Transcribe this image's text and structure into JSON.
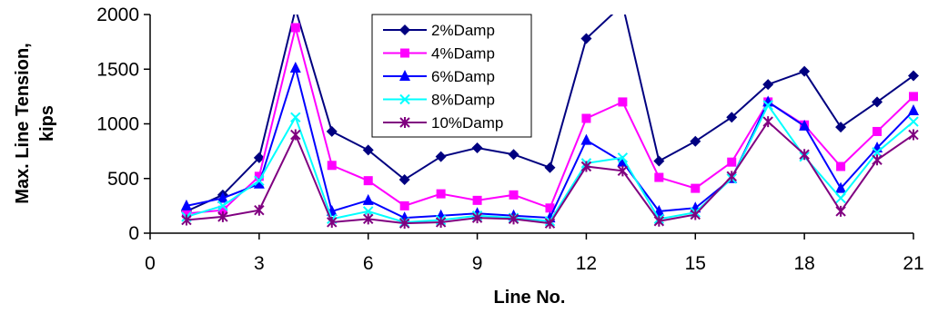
{
  "chart_data": {
    "type": "line",
    "title": "",
    "xlabel": "Line No.",
    "ylabel_lines": [
      "Max. Line Tension,",
      "kips"
    ],
    "xlim": [
      0,
      21
    ],
    "ylim": [
      0,
      2000
    ],
    "xticks": [
      0,
      3,
      6,
      9,
      12,
      15,
      18,
      21
    ],
    "yticks": [
      0,
      500,
      1000,
      1500,
      2000
    ],
    "grid": false,
    "legend_position": "top-center",
    "x": [
      1,
      2,
      3,
      4,
      5,
      6,
      7,
      8,
      9,
      10,
      11,
      12,
      13,
      14,
      15,
      16,
      17,
      18,
      19,
      20,
      21
    ],
    "series": [
      {
        "name": "2%Damp",
        "color": "#000080",
        "marker": "diamond",
        "values": [
          200,
          350,
          690,
          2050,
          930,
          760,
          490,
          700,
          780,
          720,
          600,
          1780,
          2090,
          660,
          840,
          1060,
          1360,
          1480,
          970,
          1200,
          1440
        ]
      },
      {
        "name": "4%Damp",
        "color": "#FF00FF",
        "marker": "square",
        "values": [
          180,
          210,
          520,
          1880,
          620,
          480,
          250,
          360,
          300,
          350,
          230,
          1050,
          1200,
          510,
          410,
          650,
          1200,
          990,
          610,
          930,
          1250
        ]
      },
      {
        "name": "6%Damp",
        "color": "#0000FF",
        "marker": "triangle",
        "values": [
          250,
          320,
          450,
          1510,
          200,
          300,
          140,
          160,
          180,
          160,
          140,
          850,
          650,
          200,
          230,
          500,
          1200,
          980,
          410,
          780,
          1120
        ]
      },
      {
        "name": "8%Damp",
        "color": "#00FFFF",
        "marker": "x",
        "values": [
          150,
          250,
          480,
          1060,
          130,
          200,
          100,
          120,
          160,
          140,
          110,
          640,
          690,
          130,
          190,
          500,
          1170,
          700,
          320,
          740,
          1020
        ]
      },
      {
        "name": "10%Damp",
        "color": "#800080",
        "marker": "star",
        "values": [
          120,
          150,
          210,
          900,
          100,
          130,
          90,
          100,
          140,
          130,
          90,
          610,
          570,
          110,
          170,
          520,
          1020,
          720,
          200,
          670,
          900
        ]
      }
    ]
  }
}
